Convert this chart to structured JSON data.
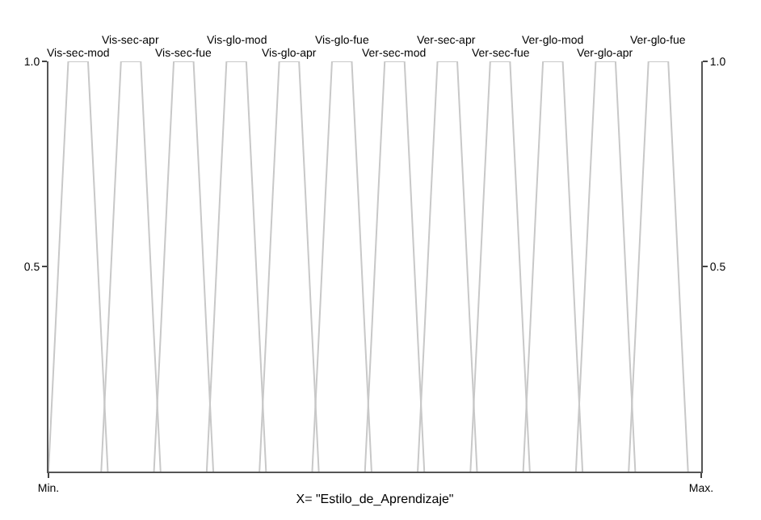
{
  "chart_data": {
    "type": "line",
    "xlabel": "X= \"Estilo_de_Aprendizaje\"",
    "categories": [
      "Min.",
      null,
      null,
      null,
      null,
      null,
      null,
      null,
      null,
      null,
      null,
      null,
      null,
      null,
      null,
      null,
      null,
      null,
      null,
      null,
      null,
      null,
      null,
      null,
      null,
      null,
      null,
      null,
      null,
      null,
      null,
      null,
      null,
      null,
      null,
      null,
      null,
      null,
      null,
      null,
      null,
      null,
      null,
      null,
      null,
      null,
      null,
      null,
      null,
      null,
      null,
      null,
      null,
      null,
      null,
      null,
      null,
      null,
      null,
      null,
      null,
      null,
      null,
      null,
      null,
      null,
      null,
      null,
      null,
      null,
      null,
      null,
      null,
      null,
      null,
      null,
      null,
      null,
      null,
      null,
      null,
      null,
      null,
      null,
      null,
      null,
      null,
      null,
      null,
      null,
      null,
      null,
      null,
      null,
      null,
      null,
      null,
      null,
      null,
      "Max."
    ],
    "ylim": [
      0,
      1
    ],
    "yticks": [
      {
        "value": 0.5,
        "label": "0.5"
      },
      {
        "value": 1,
        "label": "1.0"
      }
    ],
    "y2lim": [
      0,
      1
    ],
    "y2ticks": [
      {
        "value": 0.5,
        "label": "0.5"
      },
      {
        "value": 1,
        "label": "1.0"
      }
    ],
    "grid": false,
    "legend": false,
    "marker": "none",
    "line_style": "solid",
    "series": [
      {
        "name": "Vis-sec-mod",
        "color": "#c8c8c8",
        "values": [
          0,
          0.33,
          0.67,
          1,
          1,
          1,
          1,
          0.67,
          0.33,
          0,
          null,
          null,
          null,
          null,
          null,
          null,
          null,
          null,
          null,
          null,
          null,
          null,
          null,
          null,
          null,
          null,
          null,
          null,
          null,
          null,
          null,
          null,
          null,
          null,
          null,
          null,
          null,
          null,
          null,
          null,
          null,
          null,
          null,
          null,
          null,
          null,
          null,
          null,
          null,
          null,
          null,
          null,
          null,
          null,
          null,
          null,
          null,
          null,
          null,
          null,
          null,
          null,
          null,
          null,
          null,
          null,
          null,
          null,
          null,
          null,
          null,
          null,
          null,
          null,
          null,
          null,
          null,
          null,
          null,
          null,
          null,
          null,
          null,
          null,
          null,
          null,
          null,
          null,
          null,
          null,
          null,
          null,
          null,
          null,
          null,
          null,
          null,
          null,
          null,
          null
        ]
      },
      {
        "name": "Vis-sec-apr",
        "color": "#c8c8c8",
        "values": [
          null,
          null,
          null,
          null,
          null,
          null,
          null,
          null,
          0,
          0.33,
          0.67,
          1,
          1,
          1,
          1,
          0.67,
          0.33,
          0,
          null,
          null,
          null,
          null,
          null,
          null,
          null,
          null,
          null,
          null,
          null,
          null,
          null,
          null,
          null,
          null,
          null,
          null,
          null,
          null,
          null,
          null,
          null,
          null,
          null,
          null,
          null,
          null,
          null,
          null,
          null,
          null,
          null,
          null,
          null,
          null,
          null,
          null,
          null,
          null,
          null,
          null,
          null,
          null,
          null,
          null,
          null,
          null,
          null,
          null,
          null,
          null,
          null,
          null,
          null,
          null,
          null,
          null,
          null,
          null,
          null,
          null,
          null,
          null,
          null,
          null,
          null,
          null,
          null,
          null,
          null,
          null,
          null,
          null,
          null,
          null,
          null,
          null,
          null,
          null,
          null,
          null
        ]
      },
      {
        "name": "Vis-sec-fue",
        "color": "#c8c8c8",
        "values": [
          null,
          null,
          null,
          null,
          null,
          null,
          null,
          null,
          null,
          null,
          null,
          null,
          null,
          null,
          null,
          null,
          0,
          0.33,
          0.67,
          1,
          1,
          1,
          1,
          0.67,
          0.33,
          0,
          null,
          null,
          null,
          null,
          null,
          null,
          null,
          null,
          null,
          null,
          null,
          null,
          null,
          null,
          null,
          null,
          null,
          null,
          null,
          null,
          null,
          null,
          null,
          null,
          null,
          null,
          null,
          null,
          null,
          null,
          null,
          null,
          null,
          null,
          null,
          null,
          null,
          null,
          null,
          null,
          null,
          null,
          null,
          null,
          null,
          null,
          null,
          null,
          null,
          null,
          null,
          null,
          null,
          null,
          null,
          null,
          null,
          null,
          null,
          null,
          null,
          null,
          null,
          null,
          null,
          null,
          null,
          null,
          null,
          null,
          null,
          null,
          null,
          null
        ]
      },
      {
        "name": "Vis-glo-mod",
        "color": "#c8c8c8",
        "values": [
          null,
          null,
          null,
          null,
          null,
          null,
          null,
          null,
          null,
          null,
          null,
          null,
          null,
          null,
          null,
          null,
          null,
          null,
          null,
          null,
          null,
          null,
          null,
          null,
          0,
          0.33,
          0.67,
          1,
          1,
          1,
          1,
          0.67,
          0.33,
          0,
          null,
          null,
          null,
          null,
          null,
          null,
          null,
          null,
          null,
          null,
          null,
          null,
          null,
          null,
          null,
          null,
          null,
          null,
          null,
          null,
          null,
          null,
          null,
          null,
          null,
          null,
          null,
          null,
          null,
          null,
          null,
          null,
          null,
          null,
          null,
          null,
          null,
          null,
          null,
          null,
          null,
          null,
          null,
          null,
          null,
          null,
          null,
          null,
          null,
          null,
          null,
          null,
          null,
          null,
          null,
          null,
          null,
          null,
          null,
          null,
          null,
          null,
          null,
          null,
          null,
          null
        ]
      },
      {
        "name": "Vis-glo-apr",
        "color": "#c8c8c8",
        "values": [
          null,
          null,
          null,
          null,
          null,
          null,
          null,
          null,
          null,
          null,
          null,
          null,
          null,
          null,
          null,
          null,
          null,
          null,
          null,
          null,
          null,
          null,
          null,
          null,
          null,
          null,
          null,
          null,
          null,
          null,
          null,
          null,
          0,
          0.33,
          0.67,
          1,
          1,
          1,
          1,
          0.67,
          0.33,
          0,
          null,
          null,
          null,
          null,
          null,
          null,
          null,
          null,
          null,
          null,
          null,
          null,
          null,
          null,
          null,
          null,
          null,
          null,
          null,
          null,
          null,
          null,
          null,
          null,
          null,
          null,
          null,
          null,
          null,
          null,
          null,
          null,
          null,
          null,
          null,
          null,
          null,
          null,
          null,
          null,
          null,
          null,
          null,
          null,
          null,
          null,
          null,
          null,
          null,
          null,
          null,
          null,
          null,
          null,
          null,
          null,
          null,
          null
        ]
      },
      {
        "name": "Vis-glo-fue",
        "color": "#c8c8c8",
        "values": [
          null,
          null,
          null,
          null,
          null,
          null,
          null,
          null,
          null,
          null,
          null,
          null,
          null,
          null,
          null,
          null,
          null,
          null,
          null,
          null,
          null,
          null,
          null,
          null,
          null,
          null,
          null,
          null,
          null,
          null,
          null,
          null,
          null,
          null,
          null,
          null,
          null,
          null,
          null,
          null,
          0,
          0.33,
          0.67,
          1,
          1,
          1,
          1,
          0.67,
          0.33,
          0,
          null,
          null,
          null,
          null,
          null,
          null,
          null,
          null,
          null,
          null,
          null,
          null,
          null,
          null,
          null,
          null,
          null,
          null,
          null,
          null,
          null,
          null,
          null,
          null,
          null,
          null,
          null,
          null,
          null,
          null,
          null,
          null,
          null,
          null,
          null,
          null,
          null,
          null,
          null,
          null,
          null,
          null,
          null,
          null,
          null,
          null,
          null,
          null,
          null,
          null
        ]
      },
      {
        "name": "Ver-sec-mod",
        "color": "#c8c8c8",
        "values": [
          null,
          null,
          null,
          null,
          null,
          null,
          null,
          null,
          null,
          null,
          null,
          null,
          null,
          null,
          null,
          null,
          null,
          null,
          null,
          null,
          null,
          null,
          null,
          null,
          null,
          null,
          null,
          null,
          null,
          null,
          null,
          null,
          null,
          null,
          null,
          null,
          null,
          null,
          null,
          null,
          null,
          null,
          null,
          null,
          null,
          null,
          null,
          null,
          0,
          0.33,
          0.67,
          1,
          1,
          1,
          1,
          0.67,
          0.33,
          0,
          null,
          null,
          null,
          null,
          null,
          null,
          null,
          null,
          null,
          null,
          null,
          null,
          null,
          null,
          null,
          null,
          null,
          null,
          null,
          null,
          null,
          null,
          null,
          null,
          null,
          null,
          null,
          null,
          null,
          null,
          null,
          null,
          null,
          null,
          null,
          null,
          null,
          null,
          null,
          null,
          null,
          null
        ]
      },
      {
        "name": "Ver-sec-apr",
        "color": "#c8c8c8",
        "values": [
          null,
          null,
          null,
          null,
          null,
          null,
          null,
          null,
          null,
          null,
          null,
          null,
          null,
          null,
          null,
          null,
          null,
          null,
          null,
          null,
          null,
          null,
          null,
          null,
          null,
          null,
          null,
          null,
          null,
          null,
          null,
          null,
          null,
          null,
          null,
          null,
          null,
          null,
          null,
          null,
          null,
          null,
          null,
          null,
          null,
          null,
          null,
          null,
          null,
          null,
          null,
          null,
          null,
          null,
          null,
          null,
          0,
          0.33,
          0.67,
          1,
          1,
          1,
          1,
          0.67,
          0.33,
          0,
          null,
          null,
          null,
          null,
          null,
          null,
          null,
          null,
          null,
          null,
          null,
          null,
          null,
          null,
          null,
          null,
          null,
          null,
          null,
          null,
          null,
          null,
          null,
          null,
          null,
          null,
          null,
          null,
          null,
          null,
          null,
          null,
          null,
          null
        ]
      },
      {
        "name": "Ver-sec-fue",
        "color": "#c8c8c8",
        "values": [
          null,
          null,
          null,
          null,
          null,
          null,
          null,
          null,
          null,
          null,
          null,
          null,
          null,
          null,
          null,
          null,
          null,
          null,
          null,
          null,
          null,
          null,
          null,
          null,
          null,
          null,
          null,
          null,
          null,
          null,
          null,
          null,
          null,
          null,
          null,
          null,
          null,
          null,
          null,
          null,
          null,
          null,
          null,
          null,
          null,
          null,
          null,
          null,
          null,
          null,
          null,
          null,
          null,
          null,
          null,
          null,
          null,
          null,
          null,
          null,
          null,
          null,
          null,
          null,
          0,
          0.33,
          0.67,
          1,
          1,
          1,
          1,
          0.67,
          0.33,
          0,
          null,
          null,
          null,
          null,
          null,
          null,
          null,
          null,
          null,
          null,
          null,
          null,
          null,
          null,
          null,
          null,
          null,
          null,
          null,
          null,
          null,
          null,
          null,
          null,
          null,
          null
        ]
      },
      {
        "name": "Ver-glo-mod",
        "color": "#c8c8c8",
        "values": [
          null,
          null,
          null,
          null,
          null,
          null,
          null,
          null,
          null,
          null,
          null,
          null,
          null,
          null,
          null,
          null,
          null,
          null,
          null,
          null,
          null,
          null,
          null,
          null,
          null,
          null,
          null,
          null,
          null,
          null,
          null,
          null,
          null,
          null,
          null,
          null,
          null,
          null,
          null,
          null,
          null,
          null,
          null,
          null,
          null,
          null,
          null,
          null,
          null,
          null,
          null,
          null,
          null,
          null,
          null,
          null,
          null,
          null,
          null,
          null,
          null,
          null,
          null,
          null,
          null,
          null,
          null,
          null,
          null,
          null,
          null,
          null,
          0,
          0.33,
          0.67,
          1,
          1,
          1,
          1,
          0.67,
          0.33,
          0,
          null,
          null,
          null,
          null,
          null,
          null,
          null,
          null,
          null,
          null,
          null,
          null,
          null,
          null,
          null,
          null,
          null,
          null
        ]
      },
      {
        "name": "Ver-glo-apr",
        "color": "#c8c8c8",
        "values": [
          null,
          null,
          null,
          null,
          null,
          null,
          null,
          null,
          null,
          null,
          null,
          null,
          null,
          null,
          null,
          null,
          null,
          null,
          null,
          null,
          null,
          null,
          null,
          null,
          null,
          null,
          null,
          null,
          null,
          null,
          null,
          null,
          null,
          null,
          null,
          null,
          null,
          null,
          null,
          null,
          null,
          null,
          null,
          null,
          null,
          null,
          null,
          null,
          null,
          null,
          null,
          null,
          null,
          null,
          null,
          null,
          null,
          null,
          null,
          null,
          null,
          null,
          null,
          null,
          null,
          null,
          null,
          null,
          null,
          null,
          null,
          null,
          null,
          null,
          null,
          null,
          null,
          null,
          null,
          null,
          0,
          0.33,
          0.67,
          1,
          1,
          1,
          1,
          0.67,
          0.33,
          0,
          null,
          null,
          null,
          null,
          null,
          null,
          null,
          null,
          null,
          null
        ]
      },
      {
        "name": "Ver-glo-fue",
        "color": "#c8c8c8",
        "values": [
          null,
          null,
          null,
          null,
          null,
          null,
          null,
          null,
          null,
          null,
          null,
          null,
          null,
          null,
          null,
          null,
          null,
          null,
          null,
          null,
          null,
          null,
          null,
          null,
          null,
          null,
          null,
          null,
          null,
          null,
          null,
          null,
          null,
          null,
          null,
          null,
          null,
          null,
          null,
          null,
          null,
          null,
          null,
          null,
          null,
          null,
          null,
          null,
          null,
          null,
          null,
          null,
          null,
          null,
          null,
          null,
          null,
          null,
          null,
          null,
          null,
          null,
          null,
          null,
          null,
          null,
          null,
          null,
          null,
          null,
          null,
          null,
          null,
          null,
          null,
          null,
          null,
          null,
          null,
          null,
          null,
          null,
          null,
          null,
          null,
          null,
          null,
          null,
          0,
          0.33,
          0.67,
          1,
          1,
          1,
          1,
          0.67,
          0.33,
          0,
          null,
          null
        ]
      }
    ]
  }
}
